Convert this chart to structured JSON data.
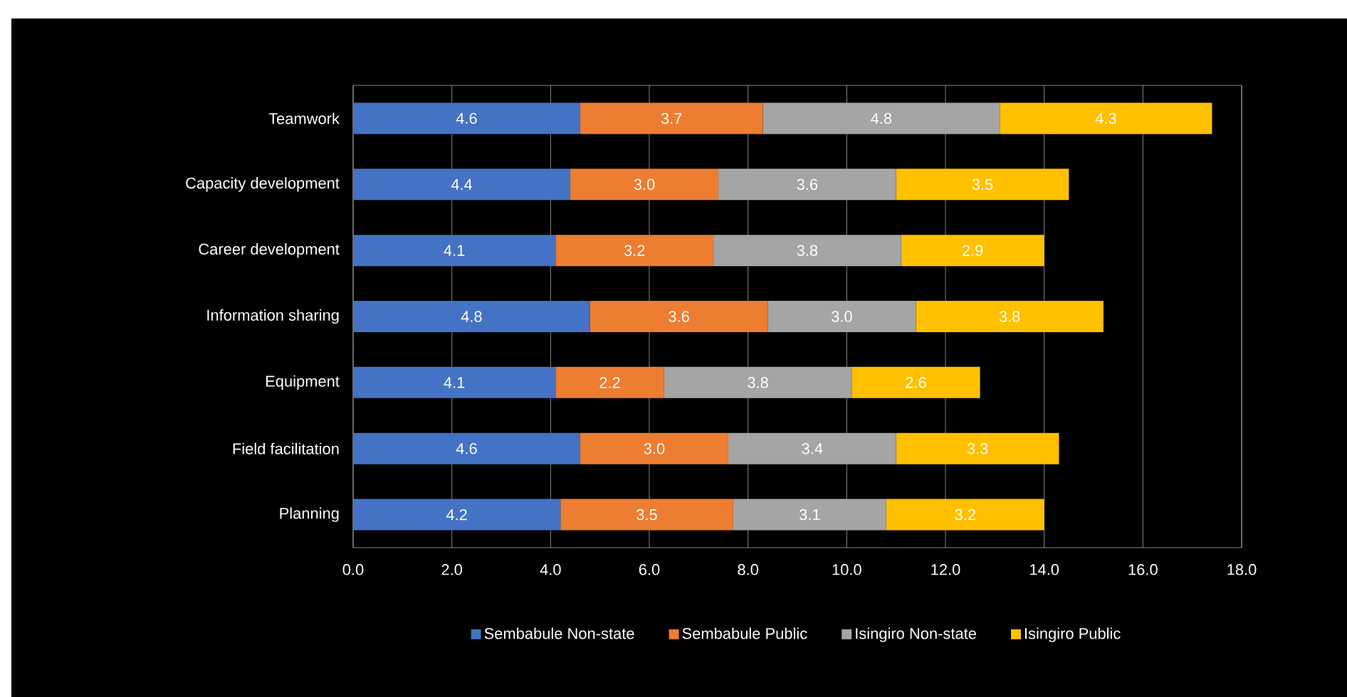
{
  "chart_data": {
    "type": "bar",
    "orientation": "horizontal",
    "stacked": true,
    "categories": [
      "Teamwork",
      "Capacity development",
      "Career development",
      "Information sharing",
      "Equipment",
      "Field facilitation",
      "Planning"
    ],
    "series": [
      {
        "name": "Sembabule Non-state",
        "color": "#4472c4",
        "values": [
          4.6,
          4.4,
          4.1,
          4.8,
          4.1,
          4.6,
          4.2
        ],
        "value_labels": [
          "4.6",
          "4.4",
          "4.1",
          "4.8",
          "4.1",
          "4.6",
          "4.2"
        ]
      },
      {
        "name": "Sembabule Public",
        "color": "#ed7d31",
        "values": [
          3.7,
          3.0,
          3.2,
          3.6,
          2.2,
          3.0,
          3.5
        ],
        "value_labels": [
          "3.7",
          "3.0",
          "3.2",
          "3.6",
          "2.2",
          "3.0",
          "3.5"
        ]
      },
      {
        "name": "Isingiro Non-state",
        "color": "#a5a5a5",
        "values": [
          4.8,
          3.6,
          3.8,
          3.0,
          3.8,
          3.4,
          3.1
        ],
        "value_labels": [
          "4.8",
          "3.6",
          "3.8",
          "3.0",
          "3.8",
          "3.4",
          "3.1"
        ]
      },
      {
        "name": "Isingiro Public",
        "color": "#ffc000",
        "values": [
          4.3,
          3.5,
          2.9,
          3.8,
          2.6,
          3.3,
          3.2
        ],
        "value_labels": [
          "4.3",
          "3.5",
          "2.9",
          "3.8",
          "2.6",
          "3.3",
          "3.2"
        ]
      }
    ],
    "xlim": [
      0,
      18
    ],
    "xticks": [
      {
        "value": 0,
        "label": "0.0"
      },
      {
        "value": 2,
        "label": "2.0"
      },
      {
        "value": 4,
        "label": "4.0"
      },
      {
        "value": 6,
        "label": "6.0"
      },
      {
        "value": 8,
        "label": "8.0"
      },
      {
        "value": 10,
        "label": "10.0"
      },
      {
        "value": 12,
        "label": "12.0"
      },
      {
        "value": 14,
        "label": "14.0"
      },
      {
        "value": 16,
        "label": "16.0"
      },
      {
        "value": 18,
        "label": "18.0"
      }
    ],
    "grid": "x",
    "legend": "bottom"
  }
}
